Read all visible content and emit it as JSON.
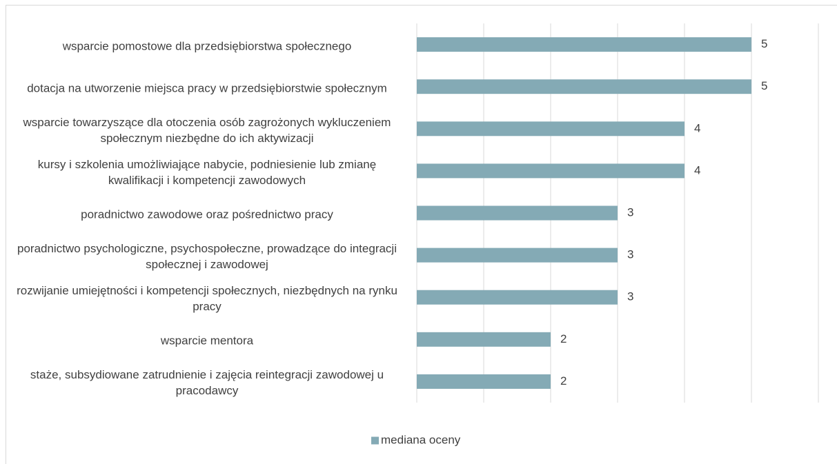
{
  "chart_data": {
    "type": "bar",
    "orientation": "horizontal",
    "categories": [
      "wsparcie pomostowe dla przedsiębiorstwa społecznego",
      "dotacja na utworzenie miejsca pracy w przedsiębiorstwie społecznym",
      "wsparcie towarzyszące dla otoczenia osób zagrożonych wykluczeniem społecznym niezbędne do ich aktywizacji",
      "kursy i szkolenia umożliwiające nabycie, podniesienie lub zmianę kwalifikacji i kompetencji zawodowych",
      "poradnictwo zawodowe oraz pośrednictwo pracy",
      "poradnictwo psychologiczne, psychospołeczne, prowadzące do integracji społecznej i zawodowej",
      "rozwijanie umiejętności i kompetencji społecznych, niezbędnych na rynku pracy",
      "wsparcie mentora",
      "staże, subsydiowane zatrudnienie i zajęcia reintegracji zawodowej u pracodawcy"
    ],
    "series": [
      {
        "name": "mediana oceny",
        "color": "#84aab5",
        "values": [
          5,
          5,
          4,
          4,
          3,
          3,
          3,
          2,
          2
        ]
      }
    ],
    "xlim": [
      0,
      6
    ],
    "xticks": [
      0,
      1,
      2,
      3,
      4,
      5,
      6
    ],
    "grid": true,
    "legend": "bottom"
  }
}
